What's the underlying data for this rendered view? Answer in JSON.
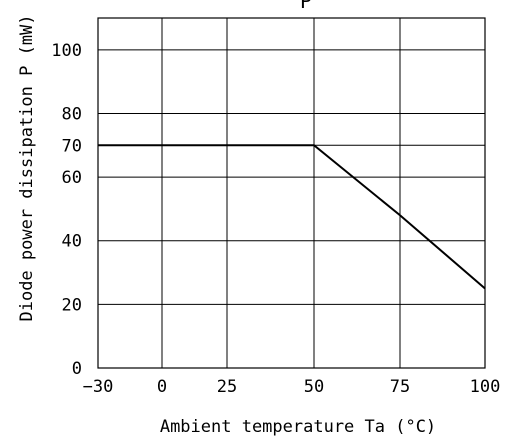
{
  "chart_data": {
    "type": "line",
    "title": "",
    "title_fragment": "P",
    "xlabel": "Ambient temperature Ta (°C)",
    "ylabel": "Diode power dissipation P (mW)",
    "x_ticks": [
      "-30",
      "0",
      "25",
      "50",
      "75",
      "100"
    ],
    "y_ticks": [
      "0",
      "20",
      "40",
      "60",
      "70",
      "80",
      "100"
    ],
    "y_tick_values": [
      0,
      20,
      40,
      60,
      70,
      80,
      100
    ],
    "ylim": [
      0,
      110
    ],
    "grid": true,
    "legend": "none",
    "series": [
      {
        "x": [
          "-30",
          "0",
          "25",
          "50",
          "75",
          "100"
        ],
        "y": [
          70,
          70,
          70,
          70,
          48,
          25
        ]
      }
    ],
    "line_color": "#000000"
  }
}
